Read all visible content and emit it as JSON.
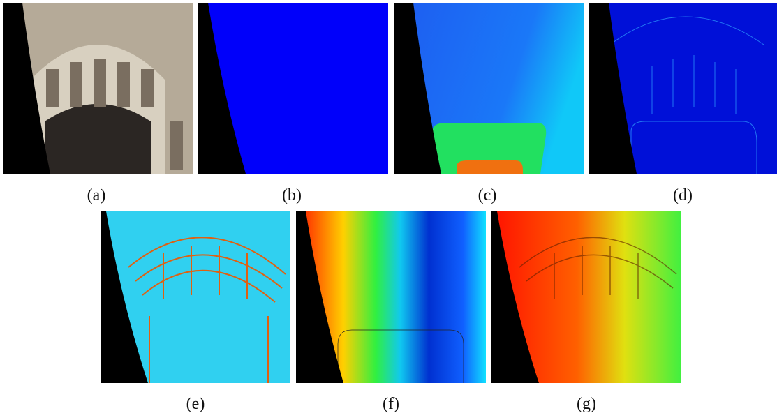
{
  "panels": [
    {
      "caption": "(a)"
    },
    {
      "caption": "(b)"
    },
    {
      "caption": "(c)"
    },
    {
      "caption": "(d)"
    },
    {
      "caption": "(e)"
    },
    {
      "caption": "(f)"
    },
    {
      "caption": "(g)"
    }
  ]
}
